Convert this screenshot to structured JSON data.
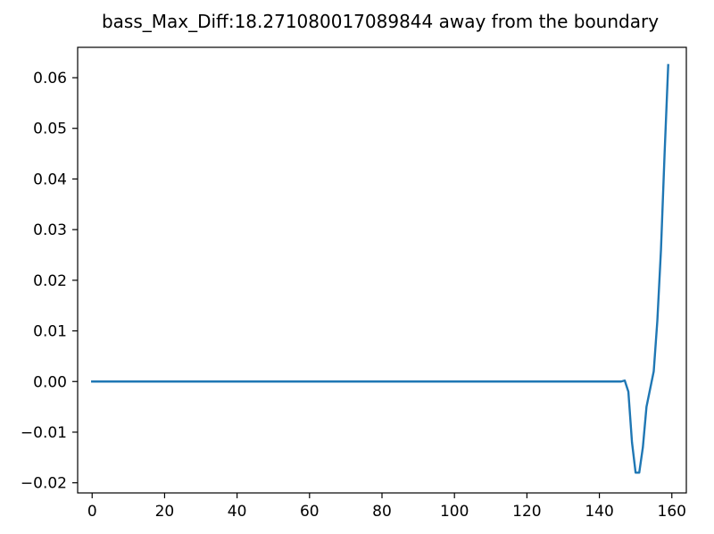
{
  "chart_data": {
    "type": "line",
    "title": "bass_Max_Diff:18.271080017089844 away from the boundary",
    "xlabel": "",
    "ylabel": "",
    "xlim": [
      -4,
      164
    ],
    "ylim": [
      -0.022,
      0.066
    ],
    "xticks": [
      0,
      20,
      40,
      60,
      80,
      100,
      120,
      140,
      160
    ],
    "xtick_labels": [
      "0",
      "20",
      "40",
      "60",
      "80",
      "100",
      "120",
      "140",
      "160"
    ],
    "yticks": [
      -0.02,
      -0.01,
      0.0,
      0.01,
      0.02,
      0.03,
      0.04,
      0.05,
      0.06
    ],
    "ytick_labels": [
      "−0.02",
      "−0.01",
      "0.00",
      "0.01",
      "0.02",
      "0.03",
      "0.04",
      "0.05",
      "0.06"
    ],
    "grid": false,
    "legend": "none",
    "series": [
      {
        "color": "#1f77b4",
        "x": [
          0,
          20,
          40,
          60,
          80,
          100,
          120,
          140,
          146,
          147,
          148,
          149,
          150,
          151,
          152,
          153,
          154,
          155,
          156,
          157,
          158,
          159
        ],
        "y": [
          0,
          0,
          0,
          0,
          0,
          0,
          0,
          0,
          0,
          0.0002,
          -0.002,
          -0.012,
          -0.018,
          -0.018,
          -0.013,
          -0.005,
          -0.0015,
          0.002,
          0.012,
          0.026,
          0.045,
          0.0625
        ]
      }
    ]
  }
}
